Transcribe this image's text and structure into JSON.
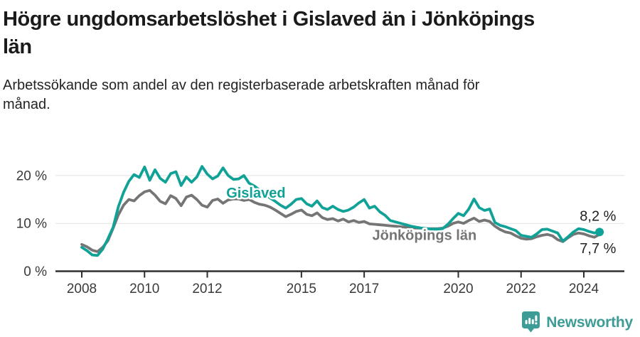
{
  "header": {
    "title": "Högre ungdomsarbetslöshet i Gislaved än i Jönköpings län",
    "subtitle": "Arbetssökande som andel av den registerbaserade arbetskraften månad för månad."
  },
  "footer": {
    "brand": "Newsworthy",
    "logo_color": "#3D9C96"
  },
  "chart_data": {
    "type": "line",
    "title": "Högre ungdomsarbetslöshet i Gislaved än i Jönköpings län",
    "subtitle": "Arbetssökande som andel av den registerbaserade arbetskraften månad för månad.",
    "grid": "horizontal-only",
    "x_axis": {
      "unit": "year",
      "start": 2008.0,
      "step_years": 0.166667,
      "end": 2024.5,
      "tick_years": [
        2008,
        2010,
        2012,
        2015,
        2017,
        2020,
        2022,
        2024
      ],
      "tick_labels": [
        "2008",
        "2010",
        "2012",
        "2015",
        "2017",
        "2020",
        "2022",
        "2024"
      ]
    },
    "y_axis": {
      "unit": "%",
      "range": [
        0,
        24
      ],
      "ticks": [
        {
          "value": 0,
          "label": "0 %"
        },
        {
          "value": 10,
          "label": "10 %"
        },
        {
          "value": 20,
          "label": "20 %"
        }
      ]
    },
    "series": [
      {
        "id": "jonkopings-lan",
        "name": "Jönköpings län",
        "color": "#757575",
        "end_dot": false,
        "values": [
          5.6,
          5.1,
          4.4,
          4.1,
          5.0,
          6.4,
          9.0,
          11.8,
          13.8,
          15.0,
          14.7,
          15.8,
          16.6,
          16.9,
          15.9,
          14.6,
          14.1,
          15.8,
          15.2,
          13.7,
          15.5,
          15.9,
          15.0,
          13.8,
          13.4,
          14.8,
          15.1,
          14.2,
          14.9,
          15.1,
          15.1,
          14.8,
          15.0,
          14.4,
          14.0,
          13.8,
          13.4,
          12.8,
          12.1,
          11.4,
          11.9,
          12.5,
          12.8,
          11.9,
          11.6,
          12.2,
          11.2,
          10.8,
          11.0,
          10.5,
          10.9,
          10.3,
          10.6,
          10.2,
          10.4,
          9.9,
          9.8,
          9.7,
          9.6,
          9.5,
          9.4,
          9.3,
          9.2,
          9.1,
          9.0,
          9.0,
          8.9,
          8.9,
          8.9,
          9.0,
          9.4,
          10.0,
          10.3,
          10.0,
          10.6,
          11.1,
          10.4,
          10.7,
          10.4,
          9.4,
          8.7,
          8.2,
          8.0,
          7.4,
          6.9,
          6.7,
          6.8,
          7.2,
          7.5,
          7.7,
          7.4,
          6.6,
          6.2,
          7.0,
          7.7,
          8.0,
          7.8,
          7.4,
          7.1,
          7.7
        ]
      },
      {
        "id": "gislaved",
        "name": "Gislaved",
        "color": "#11A297",
        "end_dot": true,
        "values": [
          5.0,
          4.3,
          3.4,
          3.3,
          4.6,
          6.8,
          9.2,
          13.5,
          16.5,
          18.8,
          20.2,
          19.6,
          21.8,
          19.0,
          21.2,
          19.4,
          18.6,
          20.4,
          20.8,
          17.9,
          19.7,
          18.6,
          19.7,
          21.9,
          20.3,
          19.3,
          19.9,
          21.6,
          20.0,
          19.2,
          19.3,
          20.0,
          18.4,
          17.8,
          17.0,
          16.2,
          15.3,
          14.6,
          13.8,
          13.2,
          14.0,
          15.0,
          15.2,
          14.1,
          13.6,
          14.7,
          13.3,
          12.9,
          13.6,
          12.9,
          12.5,
          12.8,
          13.4,
          14.3,
          15.0,
          13.2,
          13.6,
          12.4,
          11.7,
          10.6,
          10.3,
          10.0,
          9.7,
          9.4,
          9.2,
          9.0,
          8.9,
          8.8,
          8.8,
          8.9,
          9.8,
          11.0,
          12.1,
          11.6,
          13.0,
          15.1,
          13.3,
          12.7,
          13.0,
          10.2,
          9.6,
          9.3,
          8.9,
          8.5,
          7.5,
          7.3,
          7.1,
          7.8,
          8.7,
          8.8,
          8.4,
          8.0,
          6.3,
          7.2,
          8.2,
          8.9,
          8.7,
          8.3,
          8.0,
          8.2
        ]
      }
    ],
    "annotations": [
      {
        "id": "series-label-gislaved",
        "text": "Gislaved",
        "x": 2013.55,
        "y": 16.4,
        "color": "#11A297",
        "bold": true,
        "font_size": 20
      },
      {
        "id": "series-label-jonkopings-lan",
        "text": "Jönköpings län",
        "x": 2018.92,
        "y": 7.6,
        "color": "#757575",
        "bold": true,
        "font_size": 20
      },
      {
        "id": "end-value-gislaved",
        "text": "8,2 %",
        "x": 2024.45,
        "y": 11.6,
        "color": "#222222",
        "bold": false,
        "font_size": 20
      },
      {
        "id": "end-value-jonkopings-lan",
        "text": "7,7 %",
        "x": 2024.45,
        "y": 4.8,
        "color": "#222222",
        "bold": false,
        "font_size": 20
      }
    ],
    "legend": "inline-line-labels"
  }
}
